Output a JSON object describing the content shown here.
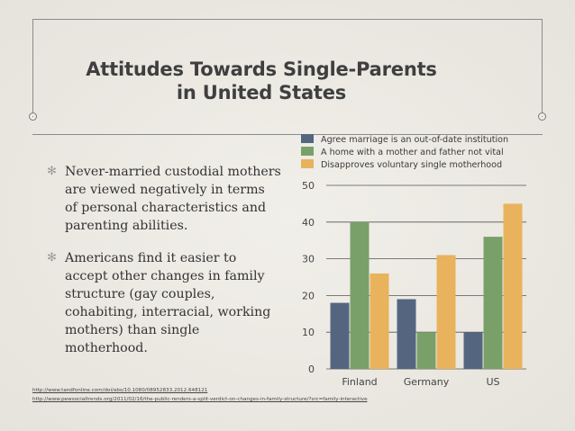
{
  "slide": {
    "title_line1": "Attitudes Towards Single-Parents",
    "title_line2": "in United States",
    "bullets": [
      "Never-married custodial mothers are viewed negatively in terms of personal characteristics and parenting abilities.",
      "Americans find it easier to accept other changes in family structure (gay couples, cohabiting, interracial, working mothers) than single motherhood."
    ],
    "bullet_mark": "✻",
    "sources": [
      "http://www.tandfonline.com/doi/abs/10.1080/08952833.2012.648121",
      "http://www.pewsocialtrends.org/2011/02/16/the-public-renders-a-split-verdict-on-changes-in-family-structure/?src=family-interactive"
    ]
  },
  "chart_data": {
    "type": "bar",
    "categories": [
      "Finland",
      "Germany",
      "US"
    ],
    "series": [
      {
        "name": "Agree marriage is an out-of-date institution",
        "values": [
          18,
          19,
          10
        ],
        "color": "#54667f"
      },
      {
        "name": "A home with a mother and father not vital",
        "values": [
          40,
          10,
          36
        ],
        "color": "#7aa06a"
      },
      {
        "name": "Disapproves voluntary single motherhood",
        "values": [
          26,
          31,
          45
        ],
        "color": "#e8b35c"
      }
    ],
    "title": "",
    "xlabel": "",
    "ylabel": "",
    "ylim": [
      0,
      50
    ],
    "yticks": [
      0,
      10,
      20,
      30,
      40,
      50
    ],
    "grid": true,
    "legend_position": "top"
  }
}
